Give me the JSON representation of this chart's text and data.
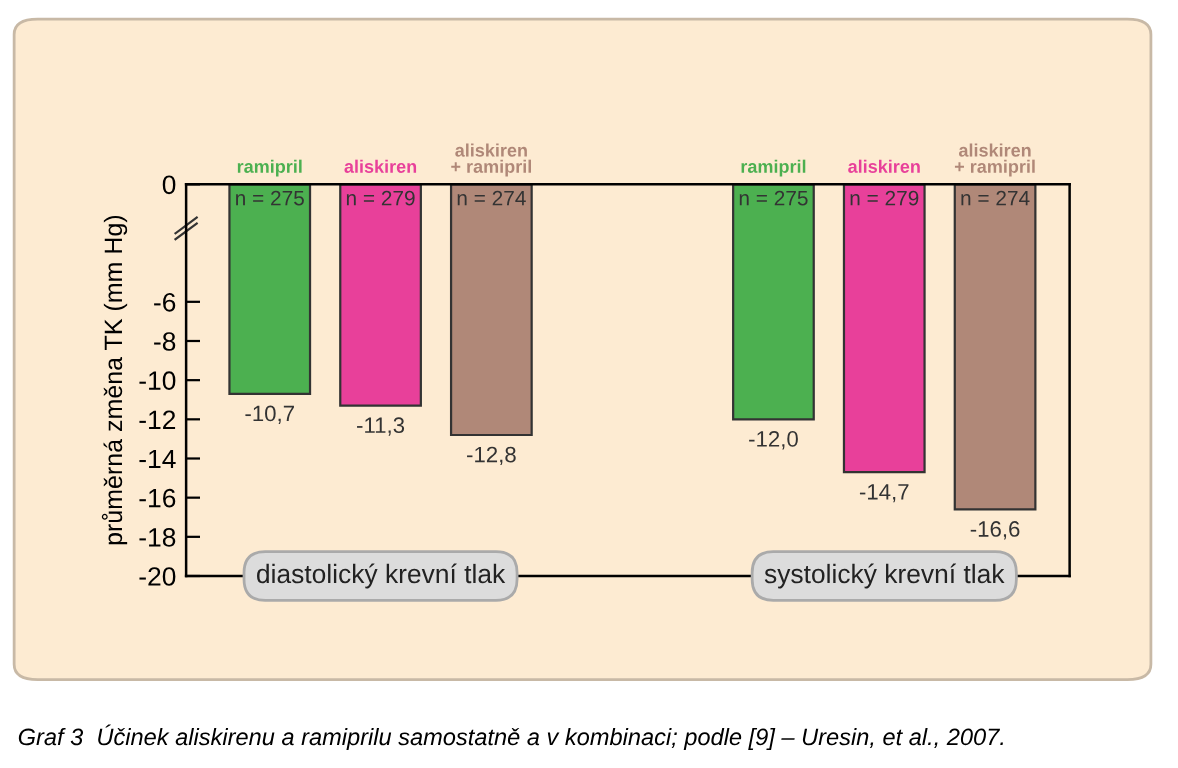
{
  "chart_data": {
    "type": "bar",
    "ylabel": "průměrná změna TK (mm Hg)",
    "categories": [
      "diastolický krevní tlak",
      "systolický krevní tlak"
    ],
    "series": [
      {
        "name": "ramipril",
        "color": "#4cb050",
        "values": [
          -10.7,
          -12.0
        ],
        "value_labels": [
          "-10,7",
          "-12,0"
        ]
      },
      {
        "name": "aliskiren",
        "color": "#e8409a",
        "values": [
          -11.3,
          -14.7
        ],
        "value_labels": [
          "-11,3",
          "-14,7"
        ]
      },
      {
        "name": "aliskiren\n+ ramipril",
        "color": "#b08878",
        "values": [
          -12.8,
          -16.6
        ],
        "value_labels": [
          "-12,8",
          "-16,6"
        ]
      }
    ],
    "ylim": [
      -20,
      0
    ],
    "yticks": [
      0,
      -6,
      -8,
      -10,
      -12,
      -14,
      -16,
      -18,
      -20
    ],
    "annotations": [
      "n = 275",
      "n = 279",
      "n = 274",
      "n = 275",
      "n = 279",
      "n = 274",
      "Graf 3  Účinek aliskirenu a ramiprilu samostatně a v kombinaci; podle [9] – Uresin, et al., 2007."
    ],
    "grid": false
  }
}
